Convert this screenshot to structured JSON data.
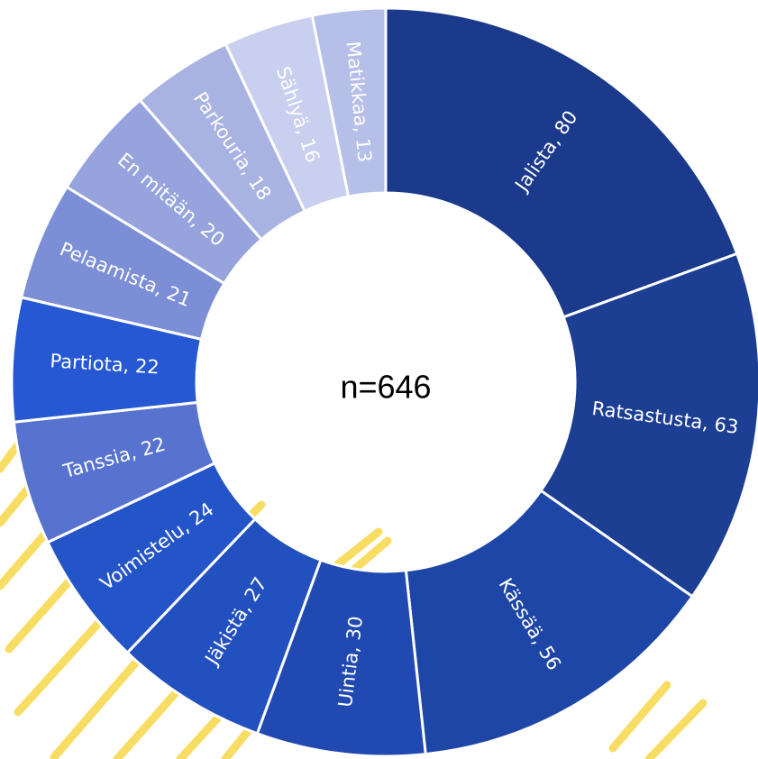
{
  "chart_data": {
    "type": "donut",
    "annotation": "n=646",
    "values": [
      80,
      63,
      56,
      30,
      27,
      24,
      22,
      22,
      21,
      20,
      18,
      16,
      13
    ],
    "value_labels": [
      "Jalista, 80",
      "Ratsastusta, 63",
      "Kässää, 56",
      "Uintia, 30",
      "Jäkistä, 27",
      "Voimistelu, 24",
      "Tanssia, 22",
      "Partiota, 22",
      "Pelaamista, 21",
      "En mitään, 20",
      "Parkouria, 18",
      "Sählyä, 16",
      "Matikkaa, 13"
    ],
    "colors": [
      "#1b3a8c",
      "#1c3f94",
      "#1e46a6",
      "#2149b2",
      "#2350bf",
      "#2455c8",
      "#5773cf",
      "#2558d2",
      "#7b8ed6",
      "#96a3dc",
      "#a9b3e2",
      "#c9cfee",
      "#b6bfe8"
    ]
  }
}
